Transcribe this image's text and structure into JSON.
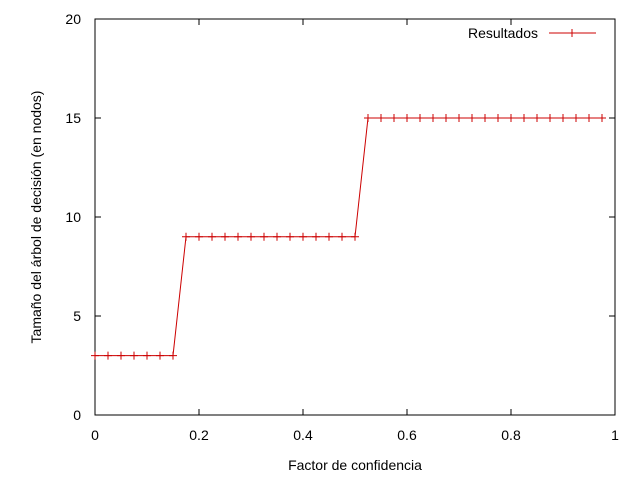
{
  "chart_data": {
    "type": "line",
    "title": "",
    "xlabel": "Factor de confidencia",
    "ylabel": "Tamaño del árbol de decisión (en nodos)",
    "xlim": [
      0,
      1
    ],
    "ylim": [
      0,
      20
    ],
    "x_ticks": [
      "0",
      "0.2",
      "0.4",
      "0.6",
      "0.8",
      "1"
    ],
    "y_ticks": [
      "0",
      "5",
      "10",
      "15",
      "20"
    ],
    "grid": false,
    "legend_position": "top-right",
    "series": [
      {
        "name": "Resultados",
        "color": "#cc0000",
        "marker": "plus",
        "x": [
          0,
          0.025,
          0.05,
          0.075,
          0.1,
          0.125,
          0.15,
          0.175,
          0.2,
          0.225,
          0.25,
          0.275,
          0.3,
          0.325,
          0.35,
          0.375,
          0.4,
          0.425,
          0.45,
          0.475,
          0.5,
          0.525,
          0.55,
          0.575,
          0.6,
          0.625,
          0.65,
          0.675,
          0.7,
          0.725,
          0.75,
          0.775,
          0.8,
          0.825,
          0.85,
          0.875,
          0.9,
          0.925,
          0.95,
          0.975
        ],
        "y": [
          3,
          3,
          3,
          3,
          3,
          3,
          3,
          9,
          9,
          9,
          9,
          9,
          9,
          9,
          9,
          9,
          9,
          9,
          9,
          9,
          9,
          15,
          15,
          15,
          15,
          15,
          15,
          15,
          15,
          15,
          15,
          15,
          15,
          15,
          15,
          15,
          15,
          15,
          15,
          15
        ]
      }
    ]
  }
}
